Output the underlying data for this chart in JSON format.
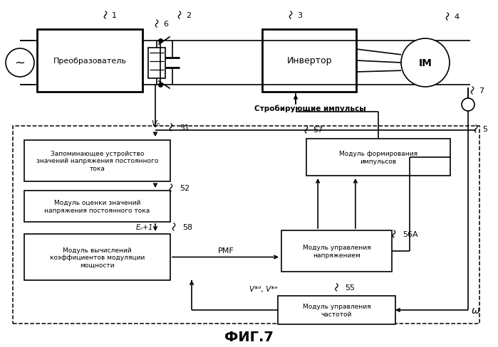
{
  "bg": "#ffffff",
  "title": "ФИГ.7",
  "text_preobr": "Преобразователь",
  "text_invertor": "Инвертор",
  "text_im": "IM",
  "text_strobir": "Стробирующие импульсы",
  "text_vn": "Vₙ",
  "text_en1": "Eₙ+1",
  "text_pmf": "PMF",
  "text_vdvq": "V*ᵈ,V*ᵉ",
  "text_omega": "ω",
  "text_box1": "Запоминающее устройство\nзначений напряжения постоянного\nтока",
  "text_box2": "Модуль оценки значений\nнапряжения постоянного тока",
  "text_box3": "Модуль вычислений\nкоэффициентов модуляции\nмощности",
  "text_box4": "Модуль формирования\nимпульсов",
  "text_box5": "Модуль управления\nнапряжением",
  "text_box6": "Модуль управления\nчастотой",
  "lw": 1.2,
  "lw_thin": 0.9,
  "lw_thick": 2.0
}
